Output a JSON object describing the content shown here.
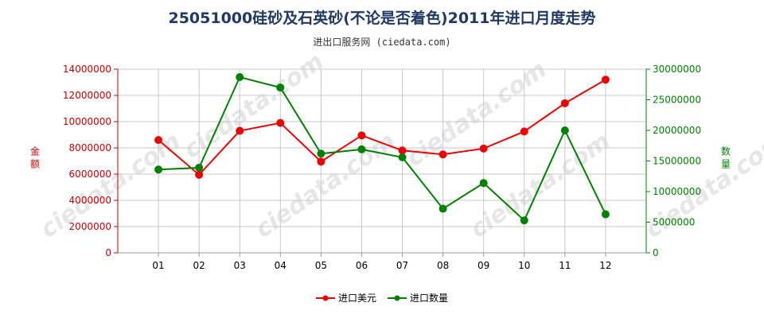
{
  "chart_data": {
    "type": "line",
    "title": "25051000硅砂及石英砂(不论是否着色)2011年进口月度走势",
    "subtitle": "进出口服务网 (ciedata.com)",
    "categories": [
      "01",
      "02",
      "03",
      "04",
      "05",
      "06",
      "07",
      "08",
      "09",
      "10",
      "11",
      "12"
    ],
    "series": [
      {
        "name": "进口美元",
        "axis": "left",
        "color": "#ee0000",
        "values": [
          8600000,
          5950000,
          9300000,
          9900000,
          6950000,
          8950000,
          7800000,
          7500000,
          7950000,
          9250000,
          11400000,
          13200000
        ]
      },
      {
        "name": "进口数量",
        "axis": "right",
        "color": "#008000",
        "values": [
          13600000,
          13900000,
          28700000,
          27000000,
          16200000,
          16900000,
          15600000,
          7200000,
          11400000,
          5300000,
          20000000,
          6300000
        ]
      }
    ],
    "left_axis": {
      "label": "金额",
      "ylim": [
        0,
        14000000
      ],
      "ticks": [
        0,
        2000000,
        4000000,
        6000000,
        8000000,
        10000000,
        12000000,
        14000000
      ],
      "color": "#cc0000"
    },
    "right_axis": {
      "label": "数量",
      "ylim": [
        0,
        30000000
      ],
      "ticks": [
        0,
        5000000,
        10000000,
        15000000,
        20000000,
        25000000,
        30000000
      ],
      "color": "#008000"
    },
    "grid": true,
    "legend_position": "bottom-center"
  }
}
